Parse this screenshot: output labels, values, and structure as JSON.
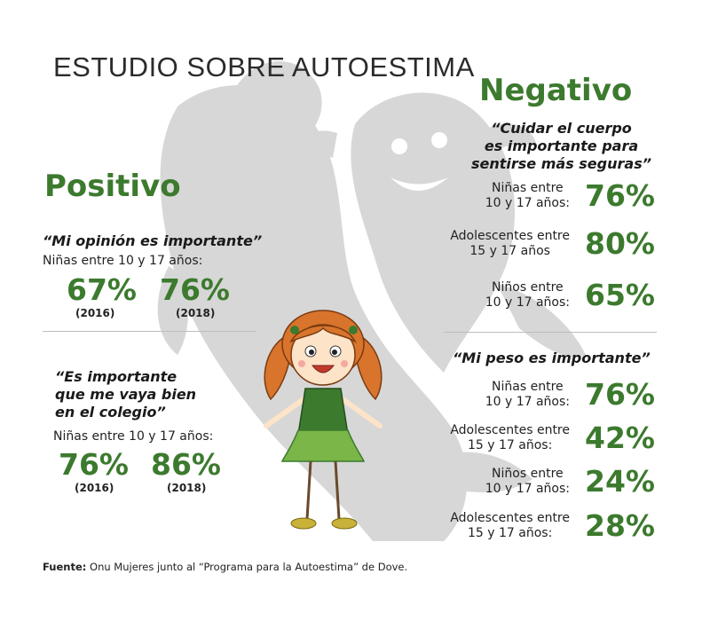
{
  "title": "ESTUDIO SOBRE AUTOESTIMA",
  "positivo": {
    "heading": "Positivo",
    "block1": {
      "quote": "“Mi opinión es importante”",
      "group": "Niñas entre 10 y 17 años:",
      "values": [
        {
          "pct": "67%",
          "year": "(2016)"
        },
        {
          "pct": "76%",
          "year": "(2018)"
        }
      ]
    },
    "block2": {
      "quote_lines": [
        "“Es importante",
        "que me vaya bien",
        "en el colegio”"
      ],
      "group": "Niñas entre 10 y 17 años:",
      "values": [
        {
          "pct": "76%",
          "year": "(2016)"
        },
        {
          "pct": "86%",
          "year": "(2018)"
        }
      ]
    }
  },
  "negativo": {
    "heading": "Negativo",
    "block1": {
      "quote_lines": [
        "“Cuidar el cuerpo",
        "es importante para",
        "sentirse más seguras”"
      ],
      "rows": [
        {
          "label_lines": [
            "Niñas entre",
            "10 y 17 años:"
          ],
          "pct": "76%"
        },
        {
          "label_lines": [
            "Adolescentes entre",
            "15 y 17 años"
          ],
          "pct": "80%"
        },
        {
          "label_lines": [
            "Niños entre",
            "10 y 17 años:"
          ],
          "pct": "65%"
        }
      ]
    },
    "block2": {
      "quote": "“Mi peso es importante”",
      "rows": [
        {
          "label_lines": [
            "Niñas entre",
            "10 y 17 años:"
          ],
          "pct": "76%"
        },
        {
          "label_lines": [
            "Adolescentes entre",
            "15 y 17 años:"
          ],
          "pct": "42%"
        },
        {
          "label_lines": [
            "Niños entre",
            "10 y 17 años:"
          ],
          "pct": "24%"
        },
        {
          "label_lines": [
            "Adolescentes entre",
            "15 y 17 años:"
          ],
          "pct": "28%"
        }
      ]
    }
  },
  "source": {
    "label": "Fuente:",
    "text": " Onu Mujeres junto al “Programa para la Autoestima” de Dove."
  },
  "colors": {
    "accent": "#3c7a2e",
    "shadow": "#d4d4d4"
  }
}
